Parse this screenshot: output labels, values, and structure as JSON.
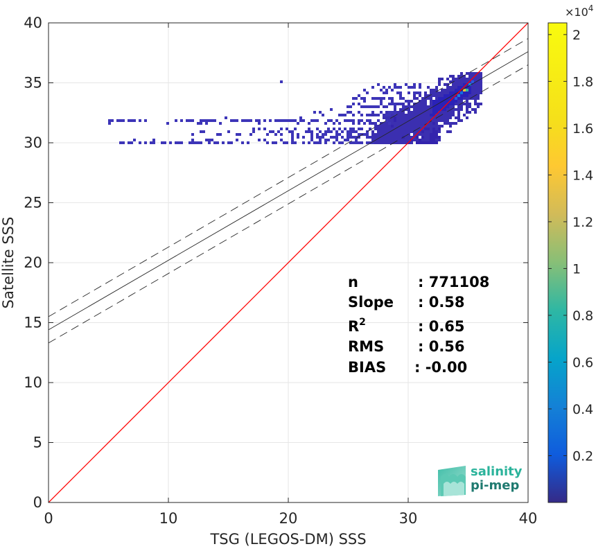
{
  "chart_data": {
    "type": "scatter",
    "subtype": "2d-histogram density scatter",
    "xlabel": "TSG (LEGOS-DM) SSS",
    "ylabel": "Satellite SSS",
    "xlim": [
      0,
      40
    ],
    "ylim": [
      0,
      40
    ],
    "xticks": [
      "0",
      "10",
      "20",
      "30",
      "40"
    ],
    "yticks": [
      "0",
      "5",
      "10",
      "15",
      "20",
      "25",
      "30",
      "35",
      "40"
    ],
    "grid": true,
    "one_to_one_line": {
      "x": [
        0,
        40
      ],
      "y": [
        0,
        40
      ],
      "color": "#ff0000"
    },
    "regression_line": {
      "x": [
        0,
        40
      ],
      "y": [
        14.4,
        37.6
      ],
      "slope": 0.58,
      "intercept": 14.4
    },
    "confidence_band": {
      "upper": {
        "x": [
          0,
          40
        ],
        "y": [
          15.5,
          38.7
        ]
      },
      "lower": {
        "x": [
          0,
          40
        ],
        "y": [
          13.3,
          36.5
        ]
      }
    },
    "density_clusters": [
      {
        "x": 33.5,
        "y": 33.5,
        "sx": 1.4,
        "sy": 1.1,
        "weight": "high"
      },
      {
        "x": 30.5,
        "y": 31.5,
        "sx": 1.5,
        "sy": 0.9,
        "weight": "medium"
      },
      {
        "x": 34.5,
        "y": 34.3,
        "sx": 0.6,
        "sy": 0.4,
        "weight": "peak"
      }
    ],
    "stats": [
      {
        "label": "n",
        "value": ": 771108"
      },
      {
        "label": "Slope",
        "value": ": 0.58"
      },
      {
        "label": "R",
        "sup": "2",
        "value": ": 0.65"
      },
      {
        "label": "RMS",
        "value": ": 0.56"
      },
      {
        "label": "BIAS",
        "value": ": -0.00"
      }
    ],
    "colorbar": {
      "exponent_label": "×10",
      "exponent_power": "4",
      "range": [
        0,
        2.05
      ],
      "ticks": [
        "0.2",
        "0.4",
        "0.6",
        "0.8",
        "1",
        "1.2",
        "1.4",
        "1.6",
        "1.8",
        "2"
      ],
      "colormap": "parula"
    }
  },
  "logo": {
    "line1": "salinity",
    "line2": "pi-mep"
  }
}
